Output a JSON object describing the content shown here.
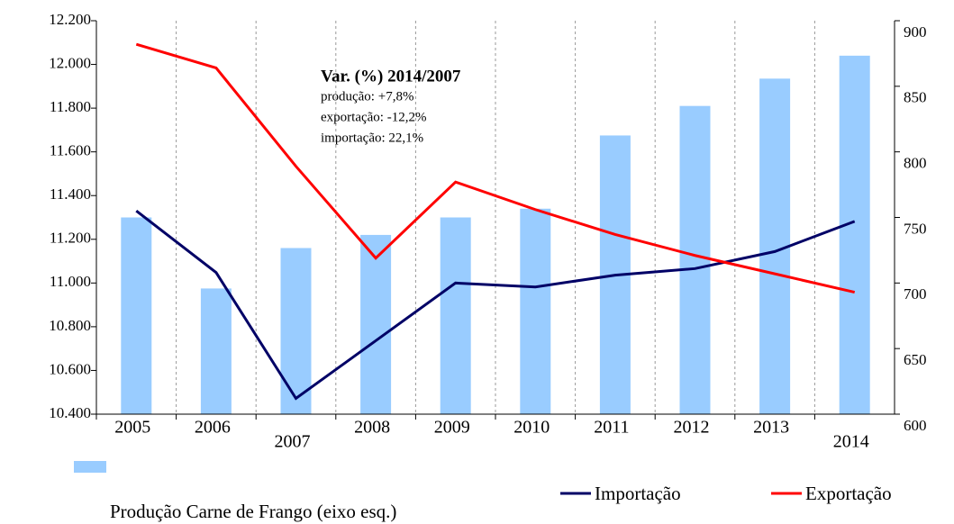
{
  "chart_data": {
    "type": "bar_line",
    "annotation": {
      "title": "Var. (%) 2014/2007",
      "lines": [
        "produção: +7,8%",
        "exportação: -12,2%",
        "importação: 22,1%"
      ]
    },
    "categories": [
      "2005",
      "2006",
      "2007",
      "2008",
      "2009",
      "2010",
      "2011",
      "2012",
      "2013",
      "2014"
    ],
    "series": [
      {
        "name": "Produção Carne de Frango (eixo esq.)",
        "type": "bar",
        "color": "#99ccff",
        "values": [
          11300,
          10975,
          11160,
          11220,
          11300,
          11340,
          11675,
          11810,
          11935,
          12040
        ]
      },
      {
        "name": "Importação",
        "type": "line",
        "axis": "y2",
        "color": "#000066",
        "values": [
          755,
          708,
          612,
          656,
          700,
          697,
          706,
          711,
          724,
          747
        ]
      },
      {
        "name": "Exportação",
        "type": "line",
        "axis": "y2",
        "color": "#ff0000",
        "values": [
          882,
          864,
          789,
          719,
          777,
          756,
          737,
          721,
          707,
          693
        ]
      }
    ],
    "ylim": [
      10400,
      12200
    ],
    "yticks": [
      {
        "value": 10400,
        "label": "10.400"
      },
      {
        "value": 10600,
        "label": "10.600"
      },
      {
        "value": 10800,
        "label": "10.800"
      },
      {
        "value": 11000,
        "label": "11.000"
      },
      {
        "value": 11200,
        "label": "11.200"
      },
      {
        "value": 11400,
        "label": "11.400"
      },
      {
        "value": 11600,
        "label": "11.600"
      },
      {
        "value": 11800,
        "label": "11.800"
      },
      {
        "value": 12000,
        "label": "12.000"
      },
      {
        "value": 12200,
        "label": "12.200"
      }
    ],
    "y2lim": [
      600,
      900
    ],
    "y2ticks": [
      600,
      650,
      700,
      750,
      800,
      850,
      900
    ]
  }
}
